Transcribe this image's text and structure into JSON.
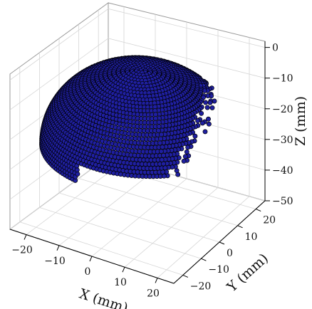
{
  "chart_data": {
    "type": "scatter",
    "projection": "3d",
    "title": "",
    "xlabel": "X (mm)",
    "ylabel": "Y (mm)",
    "zlabel": "Z (mm)",
    "xlim": [
      -25,
      25
    ],
    "ylim": [
      -25,
      25
    ],
    "zlim": [
      -50,
      2
    ],
    "xticks": [
      "−20",
      "−10",
      "0",
      "10",
      "20"
    ],
    "yticks": [
      "−20",
      "−10",
      "0",
      "10",
      "20"
    ],
    "zticks": [
      "0",
      "−10",
      "−20",
      "−30",
      "−40",
      "−50"
    ],
    "grid": true,
    "marker_color": "#1f1fa0",
    "marker_edge": "#000000",
    "surface": {
      "shape": "spherical cap of sample points",
      "sphere_radius": 26,
      "apex_z": 0,
      "partial_coverage": true
    }
  }
}
